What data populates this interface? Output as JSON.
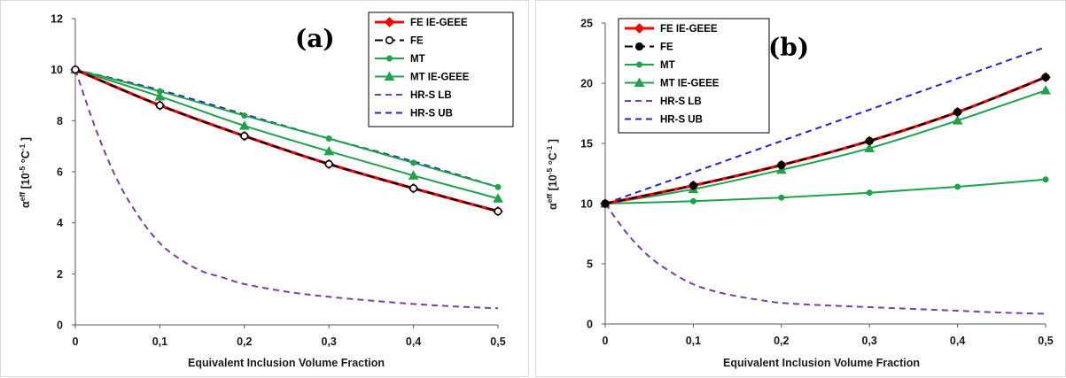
{
  "chart_data": [
    {
      "type": "line",
      "panel_label": "(a)",
      "xlabel": "Equivalent Inclusion Volume Fraction",
      "ylabel_main": "α",
      "ylabel_sup": "eff",
      "ylabel_units_open": "[10",
      "ylabel_units_exp1": "-5",
      "ylabel_units_mid": " °C",
      "ylabel_units_exp2": "-1",
      "ylabel_units_close": " ]",
      "xlim": [
        0,
        0.5
      ],
      "ylim": [
        0,
        12
      ],
      "xticks": [
        0,
        0.1,
        0.2,
        0.3,
        0.4,
        0.5
      ],
      "xtick_labels": [
        "0",
        "0,1",
        "0,2",
        "0,3",
        "0,4",
        "0,5"
      ],
      "yticks": [
        0,
        2,
        4,
        6,
        8,
        10,
        12
      ],
      "ytick_labels": [
        "0",
        "2",
        "4",
        "6",
        "8",
        "10",
        "12"
      ],
      "grid": false,
      "legend_position": "top-right",
      "series": [
        {
          "name": "FE IE-GEEE",
          "color": "#ff0000",
          "dash": "",
          "marker": "diamond",
          "marker_fill": "#ff0000",
          "x": [
            0,
            0.1,
            0.2,
            0.3,
            0.4,
            0.5
          ],
          "y": [
            10,
            8.6,
            7.4,
            6.3,
            5.35,
            4.45
          ]
        },
        {
          "name": "FE",
          "color": "#000000",
          "dash": "9,5",
          "marker": "circle",
          "marker_fill": "#ffffff",
          "x": [
            0,
            0.1,
            0.2,
            0.3,
            0.4,
            0.5
          ],
          "y": [
            10,
            8.6,
            7.4,
            6.3,
            5.35,
            4.45
          ]
        },
        {
          "name": "MT",
          "color": "#1fa34a",
          "dash": "",
          "marker": "circle-small",
          "marker_fill": "#1fa34a",
          "x": [
            0,
            0.1,
            0.2,
            0.3,
            0.4,
            0.5
          ],
          "y": [
            10,
            9.15,
            8.2,
            7.3,
            6.35,
            5.4
          ]
        },
        {
          "name": "MT IE-GEEE",
          "color": "#1fa34a",
          "dash": "",
          "marker": "triangle",
          "marker_fill": "#1fa34a",
          "x": [
            0,
            0.1,
            0.2,
            0.3,
            0.4,
            0.5
          ],
          "y": [
            10,
            8.95,
            7.8,
            6.8,
            5.85,
            4.95
          ]
        },
        {
          "name": "HR-S LB",
          "color": "#7b3fa8",
          "dash": "7,5",
          "marker": "none",
          "marker_fill": "",
          "x": [
            0,
            0.025,
            0.05,
            0.075,
            0.1,
            0.125,
            0.15,
            0.175,
            0.2,
            0.25,
            0.3,
            0.35,
            0.4,
            0.45,
            0.5
          ],
          "y": [
            10,
            7.6,
            5.65,
            4.25,
            3.2,
            2.55,
            2.1,
            1.85,
            1.6,
            1.3,
            1.1,
            0.95,
            0.82,
            0.72,
            0.65
          ]
        },
        {
          "name": "HR-S UB",
          "color": "#2020e0",
          "dash": "7,5",
          "marker": "none",
          "marker_fill": "",
          "x": [
            0,
            0.1,
            0.2,
            0.3,
            0.4,
            0.5
          ],
          "y": [
            10,
            9.2,
            8.25,
            7.3,
            6.4,
            5.4
          ]
        }
      ]
    },
    {
      "type": "line",
      "panel_label": "(b)",
      "xlabel": "Equivalent Inclusion Volume Fraction",
      "ylabel_main": "α",
      "ylabel_sup": "eff",
      "ylabel_units_open": "[10",
      "ylabel_units_exp1": "-5",
      "ylabel_units_mid": " °C",
      "ylabel_units_exp2": "-1",
      "ylabel_units_close": " ]",
      "xlim": [
        0,
        0.5
      ],
      "ylim": [
        0,
        25
      ],
      "xticks": [
        0,
        0.1,
        0.2,
        0.3,
        0.4,
        0.5
      ],
      "xtick_labels": [
        "0",
        "0,1",
        "0,2",
        "0,3",
        "0,4",
        "0,5"
      ],
      "yticks": [
        0,
        5,
        10,
        15,
        20,
        25
      ],
      "ytick_labels": [
        "0",
        "5",
        "10",
        "15",
        "20",
        "25"
      ],
      "grid": false,
      "legend_position": "top-left",
      "series": [
        {
          "name": "FE IE-GEEE",
          "color": "#ff0000",
          "dash": "",
          "marker": "diamond",
          "marker_fill": "#ff0000",
          "x": [
            0,
            0.1,
            0.2,
            0.3,
            0.4,
            0.5
          ],
          "y": [
            10,
            11.5,
            13.2,
            15.2,
            17.6,
            20.5
          ]
        },
        {
          "name": "FE",
          "color": "#000000",
          "dash": "9,5",
          "marker": "circle",
          "marker_fill": "#000000",
          "x": [
            0,
            0.1,
            0.2,
            0.3,
            0.4,
            0.5
          ],
          "y": [
            10,
            11.5,
            13.2,
            15.2,
            17.6,
            20.5
          ]
        },
        {
          "name": "MT",
          "color": "#1fa34a",
          "dash": "",
          "marker": "circle-small",
          "marker_fill": "#1fa34a",
          "x": [
            0,
            0.1,
            0.2,
            0.3,
            0.4,
            0.5
          ],
          "y": [
            10,
            10.2,
            10.5,
            10.9,
            11.4,
            12.0
          ]
        },
        {
          "name": "MT IE-GEEE",
          "color": "#1fa34a",
          "dash": "",
          "marker": "triangle",
          "marker_fill": "#1fa34a",
          "x": [
            0,
            0.1,
            0.2,
            0.3,
            0.4,
            0.5
          ],
          "y": [
            10,
            11.2,
            12.8,
            14.6,
            16.9,
            19.4
          ]
        },
        {
          "name": "HR-S LB",
          "color": "#7b3fa8",
          "dash": "7,5",
          "marker": "none",
          "marker_fill": "",
          "x": [
            0,
            0.025,
            0.05,
            0.075,
            0.1,
            0.125,
            0.15,
            0.175,
            0.2,
            0.25,
            0.3,
            0.35,
            0.4,
            0.45,
            0.5
          ],
          "y": [
            10,
            7.5,
            5.6,
            4.3,
            3.3,
            2.7,
            2.3,
            2.0,
            1.75,
            1.55,
            1.4,
            1.25,
            1.1,
            0.95,
            0.85
          ]
        },
        {
          "name": "HR-S UB",
          "color": "#2020e0",
          "dash": "7,5",
          "marker": "none",
          "marker_fill": "",
          "x": [
            0,
            0.1,
            0.2,
            0.3,
            0.4,
            0.5
          ],
          "y": [
            10,
            12.6,
            15.2,
            17.8,
            20.4,
            23.0
          ]
        }
      ]
    }
  ]
}
